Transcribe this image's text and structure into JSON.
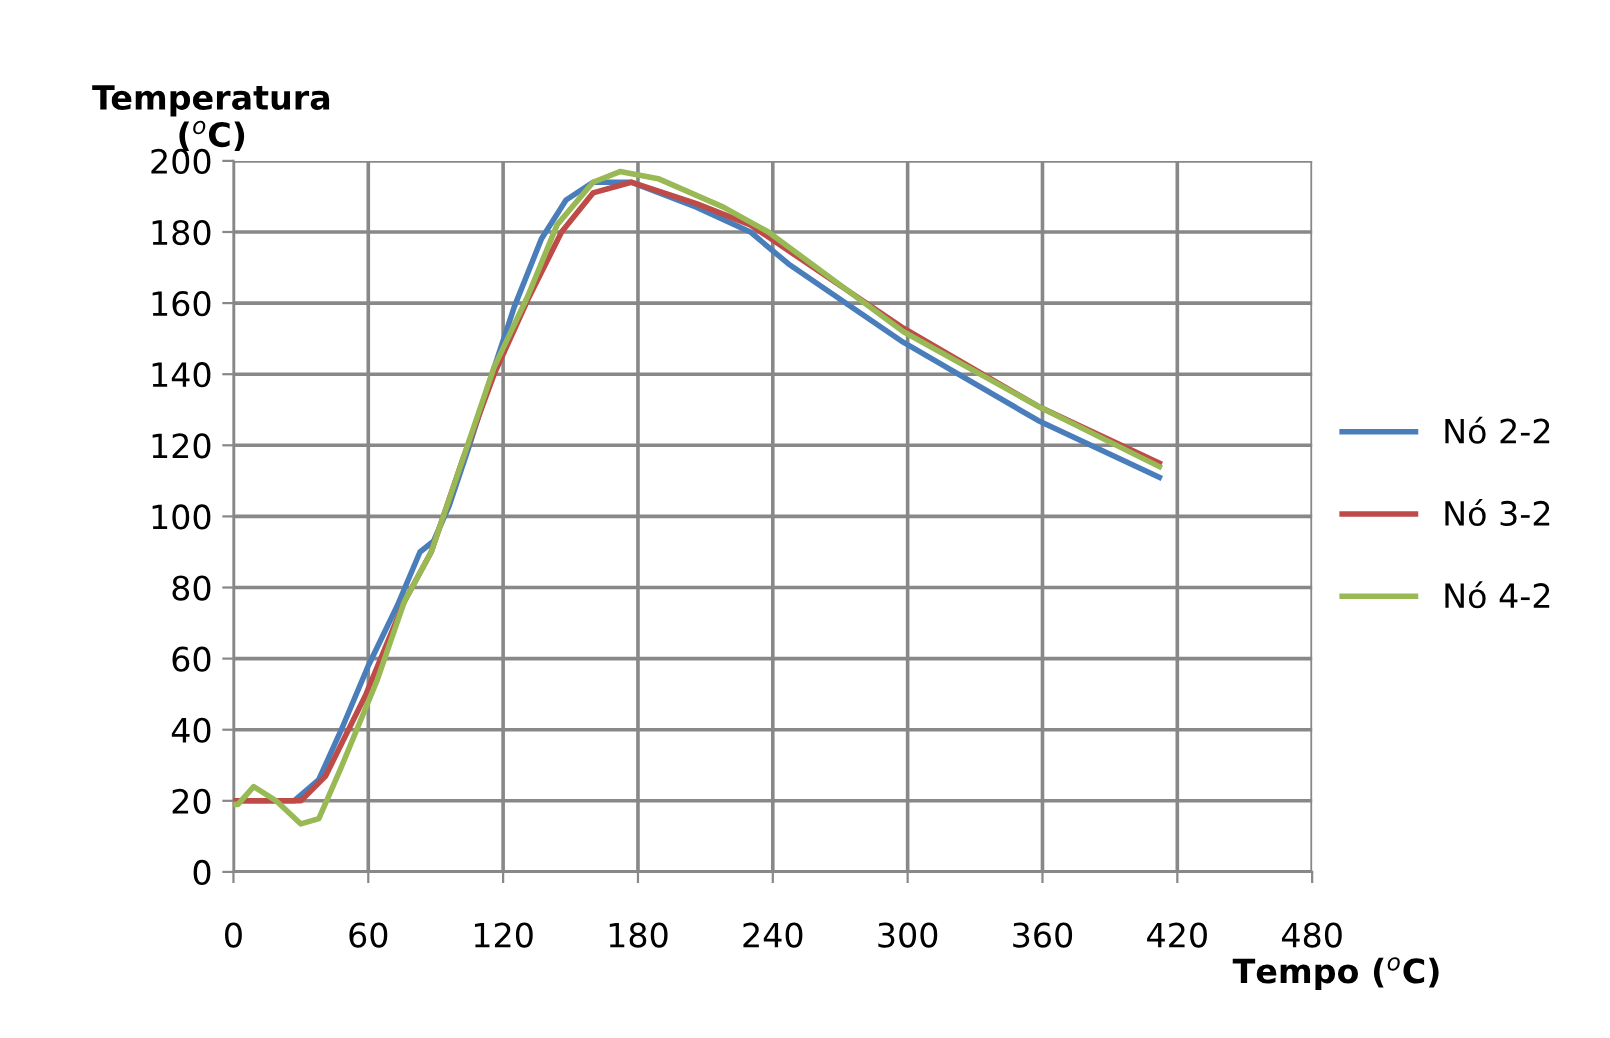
{
  "chart_data": {
    "type": "line",
    "xlabel": "Tempo ($^{o}$C)",
    "ylabel": "Temperatura\n($^{o}$C)",
    "xlim": [
      0,
      480
    ],
    "xticks": [
      0,
      60,
      120,
      180,
      240,
      300,
      360,
      420,
      480
    ],
    "ylim": [
      0,
      200
    ],
    "yticks": [
      0,
      20,
      40,
      60,
      80,
      100,
      120,
      140,
      160,
      180,
      200
    ],
    "grid": true,
    "legend": "right",
    "marker": "none",
    "line_style": "solid",
    "series": [
      {
        "name": "Nó 2-2",
        "color": "#4a7ebb",
        "x": [
          0,
          27,
          38,
          48,
          60,
          73,
          83,
          89,
          96,
          105,
          114,
          125,
          137,
          148,
          160,
          177,
          206,
          230,
          247,
          298,
          358,
          412
        ],
        "values": [
          20,
          20,
          26,
          40,
          58,
          75,
          90,
          93,
          103,
          120,
          138,
          159,
          178,
          189,
          194,
          194,
          187,
          180,
          171,
          149,
          127,
          111
        ]
      },
      {
        "name": "Nó 3-2",
        "color": "#be4b48",
        "x": [
          0,
          30,
          41,
          59,
          76,
          88,
          102,
          116,
          131,
          146,
          160,
          177,
          206,
          230,
          298,
          358,
          412
        ],
        "values": [
          20,
          20,
          27,
          50,
          76,
          90,
          116,
          140,
          161,
          180,
          191,
          194,
          188,
          182,
          153,
          131,
          115
        ]
      },
      {
        "name": "Nó 4-2",
        "color": "#98b954",
        "x": [
          0,
          2,
          9,
          19,
          30,
          38,
          48,
          64,
          76,
          88,
          102,
          116,
          131,
          144,
          160,
          172,
          189,
          218,
          238,
          298,
          358,
          412
        ],
        "values": [
          19,
          19,
          24,
          20,
          13.5,
          15,
          29.5,
          54,
          76,
          90,
          116,
          142,
          162,
          182,
          194,
          197,
          195,
          187,
          180,
          152,
          131,
          114
        ]
      }
    ]
  }
}
